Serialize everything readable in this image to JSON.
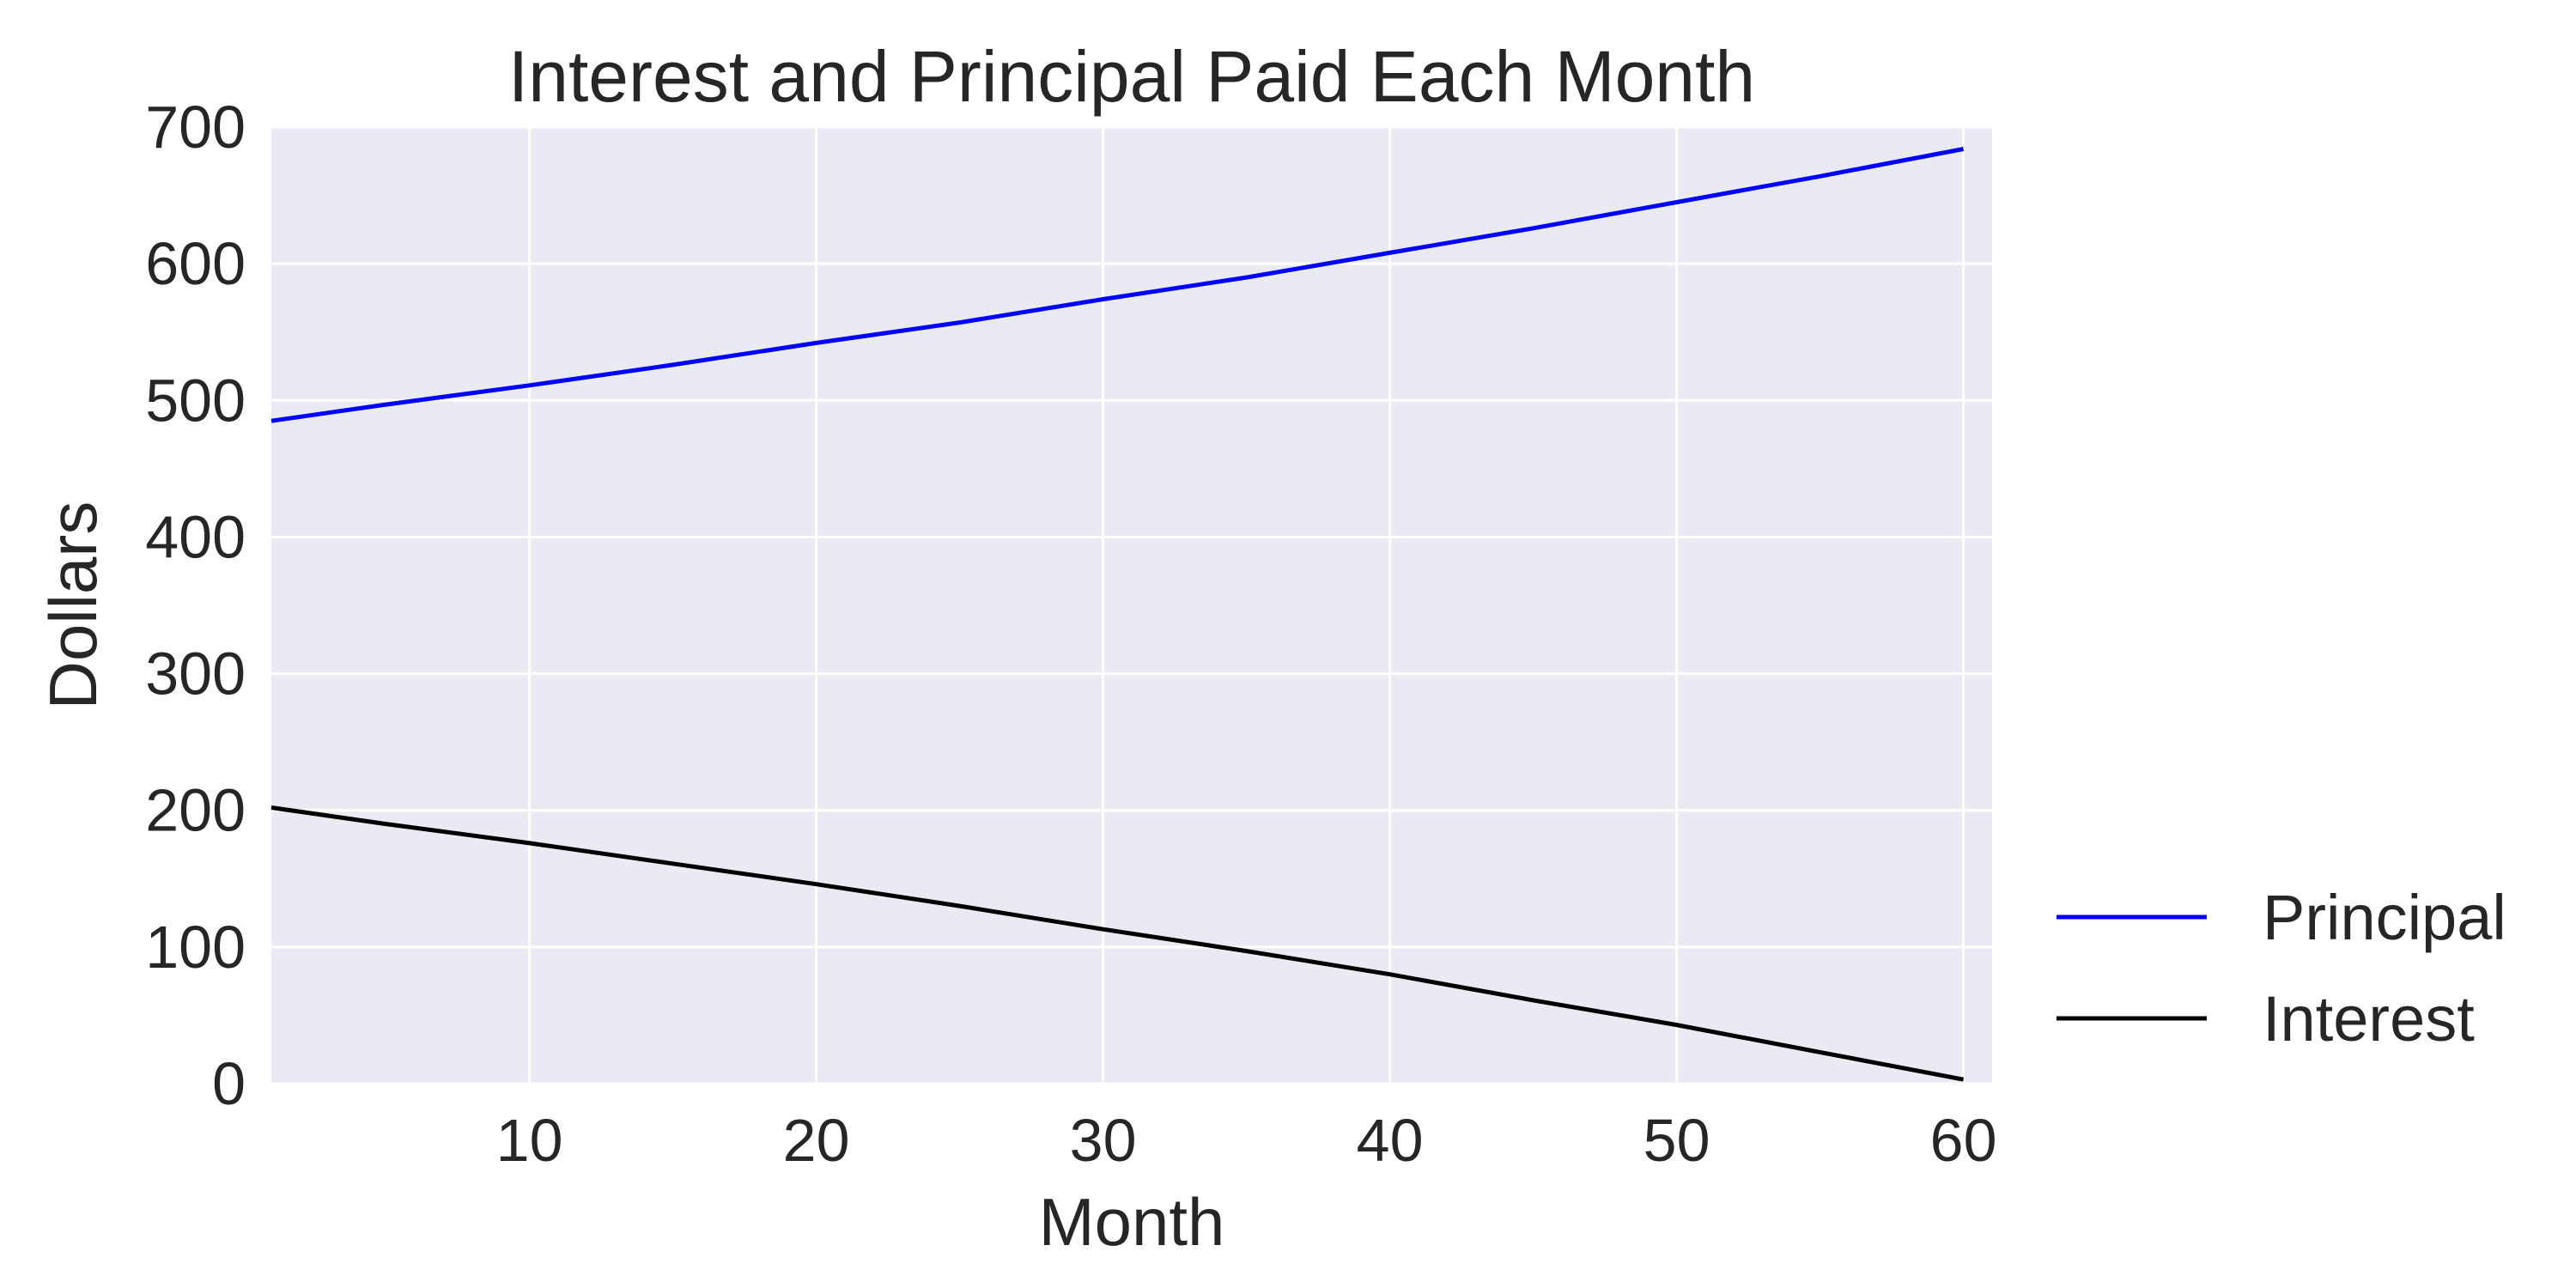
{
  "chart_data": {
    "type": "line",
    "title": "Interest and Principal Paid Each Month",
    "xlabel": "Month",
    "ylabel": "Dollars",
    "xlim": [
      1,
      61
    ],
    "ylim": [
      0,
      700
    ],
    "xticks": [
      10,
      20,
      30,
      40,
      50,
      60
    ],
    "yticks": [
      0,
      100,
      200,
      300,
      400,
      500,
      600,
      700
    ],
    "grid": true,
    "legend_position": "outside-right-bottom",
    "background_color": "#eaeaf2",
    "grid_color": "#ffffff",
    "series": [
      {
        "name": "Principal",
        "color": "#0000ff",
        "x": [
          1,
          5,
          10,
          15,
          20,
          25,
          30,
          35,
          40,
          45,
          50,
          55,
          60
        ],
        "values": [
          485,
          497,
          511,
          526,
          542,
          557,
          574,
          590,
          608,
          626,
          645,
          664,
          684
        ]
      },
      {
        "name": "Interest",
        "color": "#000000",
        "x": [
          1,
          5,
          10,
          15,
          20,
          25,
          30,
          35,
          40,
          45,
          50,
          55,
          60
        ],
        "values": [
          202,
          190,
          176,
          161,
          146,
          130,
          113,
          97,
          80,
          61,
          43,
          23,
          3
        ]
      }
    ]
  }
}
